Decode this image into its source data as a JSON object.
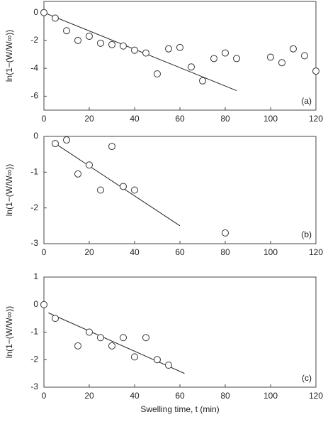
{
  "chart_data": [
    {
      "type": "scatter",
      "panel_label": "(a)",
      "ylabel": "ln(1−(W/W∞))",
      "x": [
        0,
        5,
        10,
        15,
        20,
        25,
        30,
        35,
        40,
        45,
        50,
        55,
        60,
        65,
        70,
        75,
        80,
        85,
        100,
        105,
        110,
        115,
        120
      ],
      "y": [
        0,
        -0.4,
        -1.3,
        -2.0,
        -1.7,
        -2.2,
        -2.3,
        -2.4,
        -2.7,
        -2.9,
        -4.4,
        -2.6,
        -2.5,
        -3.9,
        -4.9,
        -3.3,
        -2.9,
        -3.3,
        -3.2,
        -3.6,
        -2.6,
        -3.1,
        -4.2
      ],
      "fit": {
        "x": [
          0,
          85
        ],
        "y": [
          0,
          -5.6
        ]
      },
      "xlim": [
        0,
        120
      ],
      "xticks": [
        0,
        20,
        40,
        60,
        80,
        100,
        120
      ],
      "ylim": [
        -7,
        0.8
      ],
      "yticks": [
        0,
        -2,
        -4,
        -6
      ]
    },
    {
      "type": "scatter",
      "panel_label": "(b)",
      "ylabel": "ln(1−(W/W∞))",
      "x": [
        5,
        10,
        15,
        20,
        25,
        30,
        35,
        40,
        80
      ],
      "y": [
        -0.2,
        -0.1,
        -1.05,
        -0.8,
        -1.5,
        -0.28,
        -1.4,
        -1.5,
        -2.7
      ],
      "fit": {
        "x": [
          5,
          60
        ],
        "y": [
          -0.2,
          -2.5
        ]
      },
      "xlim": [
        0,
        120
      ],
      "xticks": [
        0,
        20,
        40,
        60,
        80,
        100,
        120
      ],
      "ylim": [
        -3,
        0
      ],
      "yticks": [
        0,
        -1,
        -2,
        -3
      ]
    },
    {
      "type": "scatter",
      "panel_label": "(c)",
      "ylabel": "ln(1−(W/W∞))",
      "xlabel": "Swelling time, t (min)",
      "x": [
        0,
        5,
        15,
        20,
        25,
        30,
        35,
        40,
        45,
        50,
        55
      ],
      "y": [
        0,
        -0.5,
        -1.5,
        -1.0,
        -1.2,
        -1.5,
        -1.2,
        -1.9,
        -1.2,
        -2.0,
        -2.2
      ],
      "fit": {
        "x": [
          2,
          62
        ],
        "y": [
          -0.3,
          -2.5
        ]
      },
      "xlim": [
        0,
        120
      ],
      "xticks": [
        0,
        20,
        40,
        60,
        80,
        100,
        120
      ],
      "ylim": [
        -3,
        1
      ],
      "yticks": [
        1,
        0,
        -1,
        -2,
        -3
      ]
    }
  ]
}
